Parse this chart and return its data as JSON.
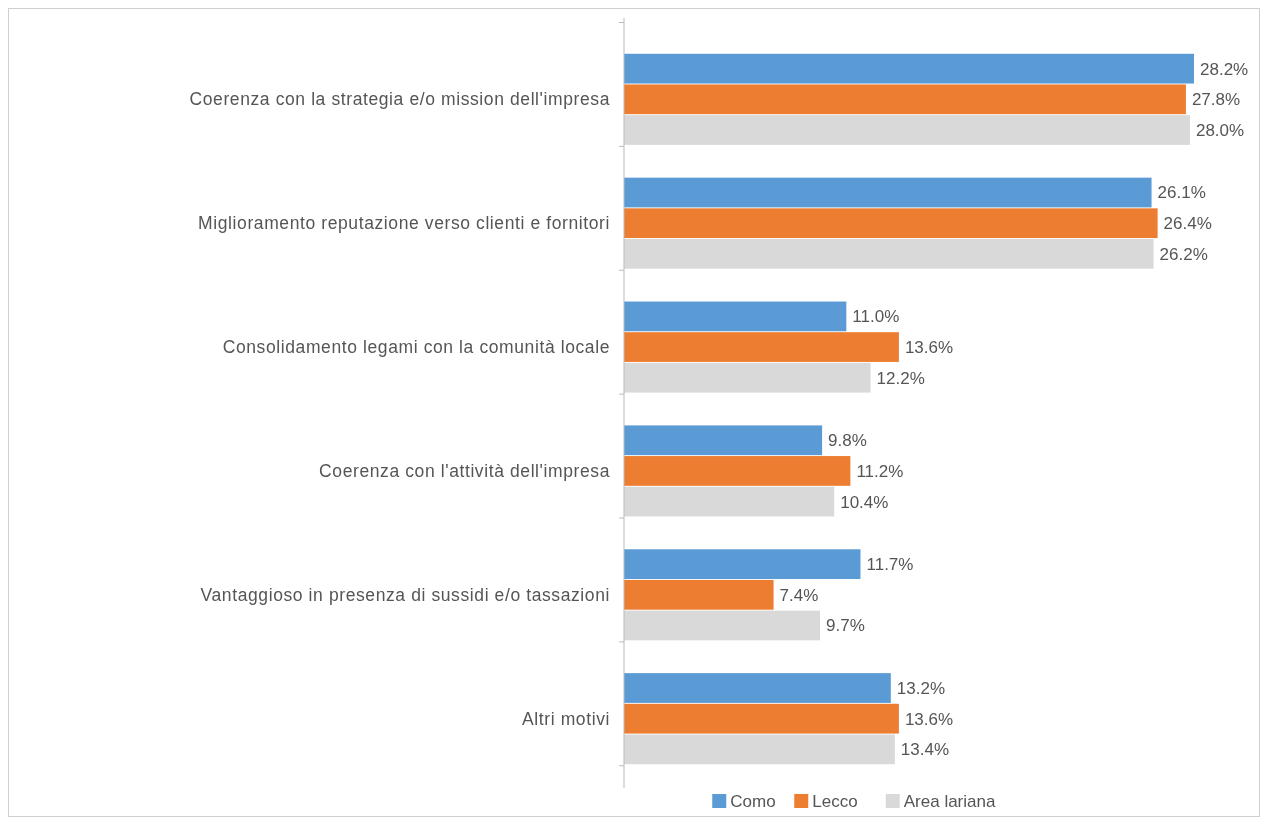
{
  "chart_data": {
    "type": "bar",
    "orientation": "horizontal",
    "categories": [
      "Coerenza con la strategia e/o mission dell'impresa",
      "Miglioramento reputazione verso clienti e fornitori",
      "Consolidamento legami con la comunità locale",
      "Coerenza con l'attività dell'impresa",
      "Vantaggioso in presenza di sussidi e/o tassazioni",
      "Altri motivi"
    ],
    "series": [
      {
        "name": "Como",
        "color": "#5b9bd5",
        "values": [
          28.2,
          26.1,
          11.0,
          9.8,
          11.7,
          13.2
        ],
        "value_labels": [
          "28.2%",
          "26.1%",
          "11.0%",
          "9.8%",
          "11.7%",
          "13.2%"
        ]
      },
      {
        "name": "Lecco",
        "color": "#ed7d31",
        "values": [
          27.8,
          26.4,
          13.6,
          11.2,
          7.4,
          13.6
        ],
        "value_labels": [
          "27.8%",
          "26.4%",
          "13.6%",
          "11.2%",
          "7.4%",
          "13.6%"
        ]
      },
      {
        "name": "Area lariana",
        "color": "#d9d9d9",
        "values": [
          28.0,
          26.2,
          12.2,
          10.4,
          9.7,
          13.4
        ],
        "value_labels": [
          "28.0%",
          "26.2%",
          "12.2%",
          "10.4%",
          "9.7%",
          "13.4%"
        ]
      }
    ],
    "tick_labels": "y",
    "grid": false,
    "legend": "bottom"
  }
}
